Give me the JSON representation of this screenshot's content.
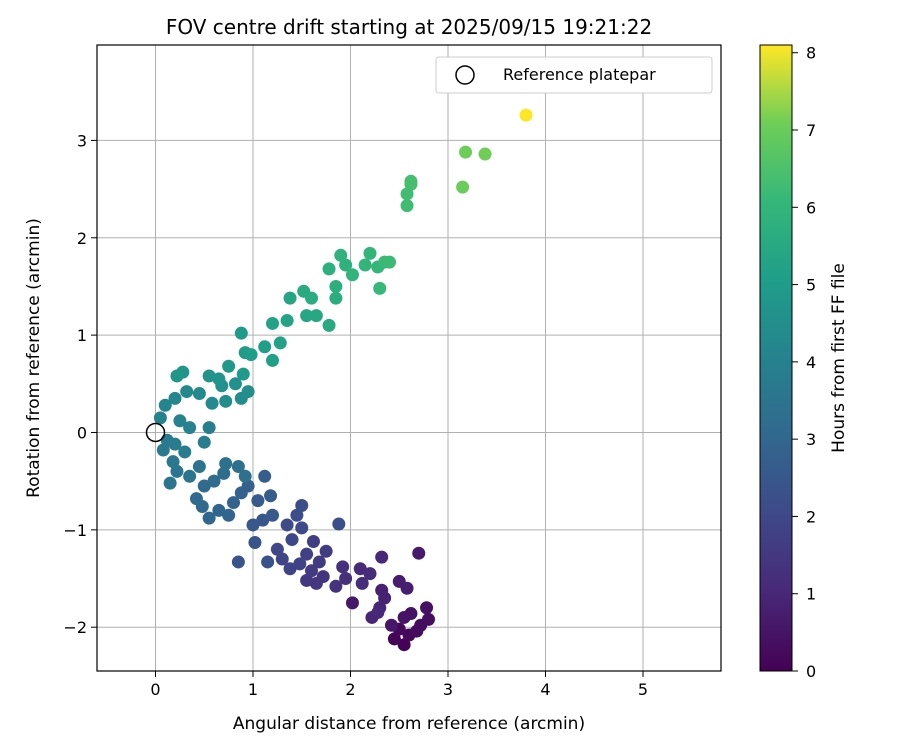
{
  "chart_data": {
    "type": "scatter",
    "title": "FOV centre drift starting at 2025/09/15 19:21:22",
    "xlabel": "Angular distance from reference (arcmin)",
    "ylabel": "Rotation from reference (arcmin)",
    "xlim": [
      -0.6,
      5.8
    ],
    "ylim": [
      -2.45,
      3.98
    ],
    "x_ticks": [
      0,
      1,
      2,
      3,
      4,
      5
    ],
    "x_tick_labels": [
      "0",
      "1",
      "2",
      "3",
      "4",
      "5"
    ],
    "y_ticks": [
      -2,
      -1,
      0,
      1,
      2,
      3
    ],
    "y_tick_labels": [
      "−2",
      "−1",
      "0",
      "1",
      "2",
      "3"
    ],
    "grid": true,
    "legend": {
      "placement": "top-right",
      "entries": [
        "Reference platepar"
      ]
    },
    "reference_point": {
      "x": 0,
      "y": 0,
      "marker": "open-circle"
    },
    "colorbar": {
      "label": "Hours from first FF file",
      "colormap": "viridis",
      "min": 0,
      "max": 8.1,
      "ticks": [
        0,
        1,
        2,
        3,
        4,
        5,
        6,
        7,
        8
      ],
      "tick_labels": [
        "0",
        "1",
        "2",
        "3",
        "4",
        "5",
        "6",
        "7",
        "8"
      ]
    },
    "points": [
      {
        "x": 2.55,
        "y": -2.18,
        "h": 0.05
      },
      {
        "x": 2.45,
        "y": -2.12,
        "h": 0.1
      },
      {
        "x": 2.6,
        "y": -2.08,
        "h": 0.15
      },
      {
        "x": 2.5,
        "y": -2.02,
        "h": 0.2
      },
      {
        "x": 2.68,
        "y": -2.04,
        "h": 0.25
      },
      {
        "x": 2.72,
        "y": -1.98,
        "h": 0.3
      },
      {
        "x": 2.8,
        "y": -1.92,
        "h": 0.35
      },
      {
        "x": 2.78,
        "y": -1.8,
        "h": 0.4
      },
      {
        "x": 2.62,
        "y": -1.86,
        "h": 0.45
      },
      {
        "x": 2.55,
        "y": -1.9,
        "h": 0.5
      },
      {
        "x": 2.42,
        "y": -1.98,
        "h": 0.55
      },
      {
        "x": 2.02,
        "y": -1.75,
        "h": 0.6
      },
      {
        "x": 2.7,
        "y": -1.24,
        "h": 0.65
      },
      {
        "x": 2.5,
        "y": -1.53,
        "h": 0.7
      },
      {
        "x": 2.58,
        "y": -1.6,
        "h": 0.75
      },
      {
        "x": 2.32,
        "y": -1.62,
        "h": 0.8
      },
      {
        "x": 2.35,
        "y": -1.7,
        "h": 0.85
      },
      {
        "x": 2.3,
        "y": -1.8,
        "h": 0.9
      },
      {
        "x": 2.22,
        "y": -1.9,
        "h": 0.95
      },
      {
        "x": 2.28,
        "y": -1.85,
        "h": 1.0
      },
      {
        "x": 2.32,
        "y": -1.28,
        "h": 1.05
      },
      {
        "x": 2.1,
        "y": -1.4,
        "h": 1.1
      },
      {
        "x": 2.2,
        "y": -1.45,
        "h": 1.15
      },
      {
        "x": 2.12,
        "y": -1.55,
        "h": 1.2
      },
      {
        "x": 1.95,
        "y": -1.5,
        "h": 1.25
      },
      {
        "x": 1.92,
        "y": -1.38,
        "h": 1.3
      },
      {
        "x": 1.85,
        "y": -1.58,
        "h": 1.35
      },
      {
        "x": 1.72,
        "y": -1.48,
        "h": 1.4
      },
      {
        "x": 1.65,
        "y": -1.55,
        "h": 1.45
      },
      {
        "x": 1.55,
        "y": -1.52,
        "h": 1.5
      },
      {
        "x": 1.6,
        "y": -1.42,
        "h": 1.55
      },
      {
        "x": 1.68,
        "y": -1.33,
        "h": 1.6
      },
      {
        "x": 1.75,
        "y": -1.22,
        "h": 1.65
      },
      {
        "x": 1.62,
        "y": -1.12,
        "h": 1.7
      },
      {
        "x": 1.55,
        "y": -1.25,
        "h": 1.75
      },
      {
        "x": 1.48,
        "y": -1.35,
        "h": 1.8
      },
      {
        "x": 1.38,
        "y": -1.4,
        "h": 1.85
      },
      {
        "x": 1.3,
        "y": -1.3,
        "h": 1.9
      },
      {
        "x": 1.25,
        "y": -1.2,
        "h": 1.95
      },
      {
        "x": 1.4,
        "y": -1.1,
        "h": 2.0
      },
      {
        "x": 1.5,
        "y": -0.98,
        "h": 2.05
      },
      {
        "x": 1.35,
        "y": -0.95,
        "h": 2.1
      },
      {
        "x": 1.45,
        "y": -0.85,
        "h": 2.15
      },
      {
        "x": 1.5,
        "y": -0.75,
        "h": 2.2
      },
      {
        "x": 1.88,
        "y": -0.94,
        "h": 2.25
      },
      {
        "x": 1.15,
        "y": -1.33,
        "h": 2.3
      },
      {
        "x": 0.85,
        "y": -1.33,
        "h": 2.35
      },
      {
        "x": 1.02,
        "y": -1.13,
        "h": 2.4
      },
      {
        "x": 1.1,
        "y": -0.9,
        "h": 2.45
      },
      {
        "x": 1.0,
        "y": -0.95,
        "h": 2.5
      },
      {
        "x": 1.2,
        "y": -0.85,
        "h": 2.55
      },
      {
        "x": 1.05,
        "y": -0.7,
        "h": 2.6
      },
      {
        "x": 1.18,
        "y": -0.65,
        "h": 2.65
      },
      {
        "x": 1.12,
        "y": -0.45,
        "h": 2.7
      },
      {
        "x": 0.95,
        "y": -0.55,
        "h": 2.75
      },
      {
        "x": 0.88,
        "y": -0.62,
        "h": 2.8
      },
      {
        "x": 0.8,
        "y": -0.72,
        "h": 2.85
      },
      {
        "x": 0.75,
        "y": -0.85,
        "h": 2.9
      },
      {
        "x": 0.65,
        "y": -0.8,
        "h": 2.95
      },
      {
        "x": 0.55,
        "y": -0.88,
        "h": 3.0
      },
      {
        "x": 0.48,
        "y": -0.76,
        "h": 3.05
      },
      {
        "x": 0.42,
        "y": -0.68,
        "h": 3.1
      },
      {
        "x": 0.5,
        "y": -0.55,
        "h": 3.15
      },
      {
        "x": 0.6,
        "y": -0.5,
        "h": 3.2
      },
      {
        "x": 0.7,
        "y": -0.42,
        "h": 3.25
      },
      {
        "x": 0.85,
        "y": -0.35,
        "h": 3.3
      },
      {
        "x": 0.92,
        "y": -0.45,
        "h": 3.35
      },
      {
        "x": 0.72,
        "y": -0.32,
        "h": 3.4
      },
      {
        "x": 0.45,
        "y": -0.35,
        "h": 3.45
      },
      {
        "x": 0.35,
        "y": -0.45,
        "h": 3.5
      },
      {
        "x": 0.22,
        "y": -0.4,
        "h": 3.55
      },
      {
        "x": 0.15,
        "y": -0.52,
        "h": 3.6
      },
      {
        "x": 0.18,
        "y": -0.3,
        "h": 3.65
      },
      {
        "x": 0.08,
        "y": -0.18,
        "h": 3.7
      },
      {
        "x": 0.12,
        "y": -0.08,
        "h": 3.75
      },
      {
        "x": 0.2,
        "y": -0.12,
        "h": 3.8
      },
      {
        "x": 0.3,
        "y": -0.2,
        "h": 3.85
      },
      {
        "x": 0.5,
        "y": -0.1,
        "h": 3.9
      },
      {
        "x": 0.55,
        "y": 0.05,
        "h": 3.95
      },
      {
        "x": 0.35,
        "y": 0.05,
        "h": 4.0
      },
      {
        "x": 0.25,
        "y": 0.12,
        "h": 4.05
      },
      {
        "x": 0.05,
        "y": 0.15,
        "h": 4.1
      },
      {
        "x": 0.1,
        "y": 0.28,
        "h": 4.15
      },
      {
        "x": 0.2,
        "y": 0.35,
        "h": 4.2
      },
      {
        "x": 0.32,
        "y": 0.42,
        "h": 4.25
      },
      {
        "x": 0.45,
        "y": 0.4,
        "h": 4.3
      },
      {
        "x": 0.58,
        "y": 0.3,
        "h": 4.35
      },
      {
        "x": 0.72,
        "y": 0.32,
        "h": 4.4
      },
      {
        "x": 0.88,
        "y": 0.35,
        "h": 4.45
      },
      {
        "x": 0.95,
        "y": 0.42,
        "h": 4.5
      },
      {
        "x": 0.82,
        "y": 0.5,
        "h": 4.55
      },
      {
        "x": 0.68,
        "y": 0.48,
        "h": 4.6
      },
      {
        "x": 0.55,
        "y": 0.58,
        "h": 4.65
      },
      {
        "x": 0.65,
        "y": 0.55,
        "h": 4.7
      },
      {
        "x": 0.28,
        "y": 0.62,
        "h": 4.75
      },
      {
        "x": 0.22,
        "y": 0.58,
        "h": 4.8
      },
      {
        "x": 0.75,
        "y": 0.68,
        "h": 4.85
      },
      {
        "x": 0.9,
        "y": 0.6,
        "h": 4.9
      },
      {
        "x": 0.92,
        "y": 0.82,
        "h": 4.95
      },
      {
        "x": 0.88,
        "y": 1.02,
        "h": 5.0
      },
      {
        "x": 0.98,
        "y": 0.8,
        "h": 5.05
      },
      {
        "x": 1.12,
        "y": 0.88,
        "h": 5.1
      },
      {
        "x": 1.2,
        "y": 0.74,
        "h": 5.15
      },
      {
        "x": 1.28,
        "y": 0.92,
        "h": 5.2
      },
      {
        "x": 1.2,
        "y": 1.12,
        "h": 5.25
      },
      {
        "x": 1.35,
        "y": 1.15,
        "h": 5.3
      },
      {
        "x": 1.38,
        "y": 1.38,
        "h": 5.35
      },
      {
        "x": 1.55,
        "y": 1.2,
        "h": 5.4
      },
      {
        "x": 1.65,
        "y": 1.2,
        "h": 5.45
      },
      {
        "x": 1.78,
        "y": 1.1,
        "h": 5.5
      },
      {
        "x": 1.52,
        "y": 1.45,
        "h": 5.55
      },
      {
        "x": 1.6,
        "y": 1.38,
        "h": 5.6
      },
      {
        "x": 1.85,
        "y": 1.38,
        "h": 5.65
      },
      {
        "x": 1.85,
        "y": 1.5,
        "h": 5.7
      },
      {
        "x": 1.78,
        "y": 1.68,
        "h": 5.75
      },
      {
        "x": 1.95,
        "y": 1.72,
        "h": 5.8
      },
      {
        "x": 1.9,
        "y": 1.82,
        "h": 5.85
      },
      {
        "x": 2.02,
        "y": 1.62,
        "h": 5.9
      },
      {
        "x": 2.15,
        "y": 1.72,
        "h": 5.95
      },
      {
        "x": 2.2,
        "y": 1.84,
        "h": 6.0
      },
      {
        "x": 2.28,
        "y": 1.7,
        "h": 6.05
      },
      {
        "x": 2.3,
        "y": 1.48,
        "h": 6.1
      },
      {
        "x": 2.35,
        "y": 1.75,
        "h": 6.15
      },
      {
        "x": 2.4,
        "y": 1.75,
        "h": 6.2
      },
      {
        "x": 2.58,
        "y": 2.33,
        "h": 6.25
      },
      {
        "x": 2.58,
        "y": 2.45,
        "h": 6.3
      },
      {
        "x": 2.62,
        "y": 2.55,
        "h": 6.35
      },
      {
        "x": 2.62,
        "y": 2.58,
        "h": 6.4
      },
      {
        "x": 3.15,
        "y": 2.52,
        "h": 7.0
      },
      {
        "x": 3.18,
        "y": 2.88,
        "h": 7.05
      },
      {
        "x": 3.38,
        "y": 2.86,
        "h": 7.1
      },
      {
        "x": 3.8,
        "y": 3.26,
        "h": 8.1
      }
    ]
  }
}
